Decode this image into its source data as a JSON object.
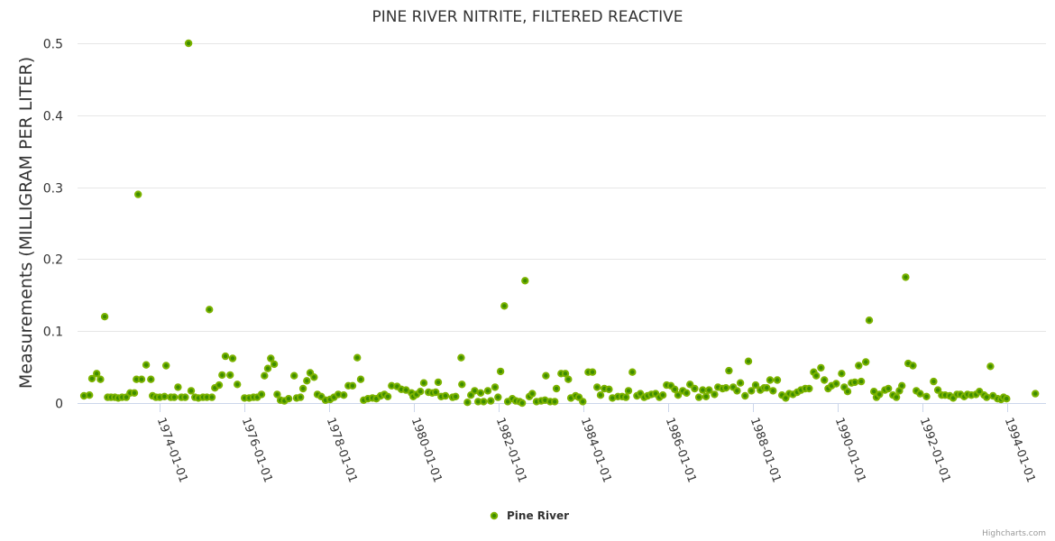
{
  "chart_data": {
    "type": "scatter",
    "title": "PINE RIVER NITRITE, FILTERED REACTIVE",
    "xlabel": "",
    "ylabel": "Measurements (MILLIGRAM PER LITER)",
    "xlim": [
      1972.06,
      1994.91
    ],
    "ylim": [
      0,
      0.5
    ],
    "grid": true,
    "legend_position": "bottom-center",
    "y_ticks": [
      {
        "value": 0,
        "label": "0"
      },
      {
        "value": 0.1,
        "label": "0.1"
      },
      {
        "value": 0.2,
        "label": "0.2"
      },
      {
        "value": 0.3,
        "label": "0.3"
      },
      {
        "value": 0.4,
        "label": "0.4"
      },
      {
        "value": 0.5,
        "label": "0.5"
      }
    ],
    "x_ticks": [
      {
        "value": 1974,
        "label": "1974-01-01"
      },
      {
        "value": 1976,
        "label": "1976-01-01"
      },
      {
        "value": 1978,
        "label": "1978-01-01"
      },
      {
        "value": 1980,
        "label": "1980-01-01"
      },
      {
        "value": 1982,
        "label": "1982-01-01"
      },
      {
        "value": 1984,
        "label": "1984-01-01"
      },
      {
        "value": 1986,
        "label": "1986-01-01"
      },
      {
        "value": 1988,
        "label": "1988-01-01"
      },
      {
        "value": 1990,
        "label": "1990-01-01"
      },
      {
        "value": 1992,
        "label": "1992-01-01"
      },
      {
        "value": 1994,
        "label": "1994-01-01"
      }
    ],
    "series": [
      {
        "name": "Pine River",
        "color": "#7cb300",
        "center_color": "#3d8c00",
        "points": [
          [
            1972.21,
            0.01
          ],
          [
            1972.34,
            0.011
          ],
          [
            1972.4,
            0.034
          ],
          [
            1972.51,
            0.041
          ],
          [
            1972.6,
            0.033
          ],
          [
            1972.7,
            0.12
          ],
          [
            1972.77,
            0.008
          ],
          [
            1972.85,
            0.008
          ],
          [
            1972.94,
            0.008
          ],
          [
            1973.02,
            0.007
          ],
          [
            1973.11,
            0.008
          ],
          [
            1973.21,
            0.008
          ],
          [
            1973.3,
            0.014
          ],
          [
            1973.4,
            0.014
          ],
          [
            1973.45,
            0.033
          ],
          [
            1973.49,
            0.29
          ],
          [
            1973.57,
            0.033
          ],
          [
            1973.68,
            0.053
          ],
          [
            1973.79,
            0.033
          ],
          [
            1973.83,
            0.01
          ],
          [
            1973.91,
            0.008
          ],
          [
            1974.0,
            0.008
          ],
          [
            1974.11,
            0.009
          ],
          [
            1974.15,
            0.052
          ],
          [
            1974.26,
            0.008
          ],
          [
            1974.34,
            0.008
          ],
          [
            1974.43,
            0.022
          ],
          [
            1974.51,
            0.008
          ],
          [
            1974.6,
            0.008
          ],
          [
            1974.68,
            0.5
          ],
          [
            1974.74,
            0.017
          ],
          [
            1974.83,
            0.008
          ],
          [
            1974.91,
            0.007
          ],
          [
            1975.02,
            0.008
          ],
          [
            1975.11,
            0.008
          ],
          [
            1975.17,
            0.13
          ],
          [
            1975.23,
            0.008
          ],
          [
            1975.3,
            0.021
          ],
          [
            1975.4,
            0.025
          ],
          [
            1975.47,
            0.039
          ],
          [
            1975.55,
            0.065
          ],
          [
            1975.66,
            0.039
          ],
          [
            1975.72,
            0.062
          ],
          [
            1975.83,
            0.026
          ],
          [
            1976.0,
            0.007
          ],
          [
            1976.11,
            0.007
          ],
          [
            1976.21,
            0.008
          ],
          [
            1976.3,
            0.008
          ],
          [
            1976.4,
            0.012
          ],
          [
            1976.47,
            0.038
          ],
          [
            1976.55,
            0.048
          ],
          [
            1976.62,
            0.062
          ],
          [
            1976.7,
            0.054
          ],
          [
            1976.77,
            0.012
          ],
          [
            1976.85,
            0.004
          ],
          [
            1976.94,
            0.003
          ],
          [
            1977.04,
            0.006
          ],
          [
            1977.17,
            0.038
          ],
          [
            1977.23,
            0.007
          ],
          [
            1977.32,
            0.008
          ],
          [
            1977.38,
            0.02
          ],
          [
            1977.47,
            0.031
          ],
          [
            1977.55,
            0.042
          ],
          [
            1977.64,
            0.036
          ],
          [
            1977.72,
            0.012
          ],
          [
            1977.81,
            0.009
          ],
          [
            1977.91,
            0.004
          ],
          [
            1978.02,
            0.005
          ],
          [
            1978.11,
            0.008
          ],
          [
            1978.21,
            0.012
          ],
          [
            1978.34,
            0.011
          ],
          [
            1978.45,
            0.024
          ],
          [
            1978.55,
            0.024
          ],
          [
            1978.66,
            0.063
          ],
          [
            1978.74,
            0.033
          ],
          [
            1978.81,
            0.004
          ],
          [
            1978.91,
            0.006
          ],
          [
            1979.02,
            0.007
          ],
          [
            1979.11,
            0.006
          ],
          [
            1979.21,
            0.01
          ],
          [
            1979.3,
            0.012
          ],
          [
            1979.38,
            0.009
          ],
          [
            1979.47,
            0.024
          ],
          [
            1979.6,
            0.023
          ],
          [
            1979.7,
            0.019
          ],
          [
            1979.81,
            0.018
          ],
          [
            1979.94,
            0.014
          ],
          [
            1979.98,
            0.009
          ],
          [
            1980.06,
            0.012
          ],
          [
            1980.15,
            0.016
          ],
          [
            1980.23,
            0.028
          ],
          [
            1980.34,
            0.015
          ],
          [
            1980.43,
            0.014
          ],
          [
            1980.51,
            0.015
          ],
          [
            1980.57,
            0.029
          ],
          [
            1980.64,
            0.009
          ],
          [
            1980.74,
            0.01
          ],
          [
            1980.91,
            0.008
          ],
          [
            1980.98,
            0.009
          ],
          [
            1981.11,
            0.063
          ],
          [
            1981.13,
            0.026
          ],
          [
            1981.26,
            0.001
          ],
          [
            1981.34,
            0.011
          ],
          [
            1981.43,
            0.017
          ],
          [
            1981.51,
            0.002
          ],
          [
            1981.57,
            0.014
          ],
          [
            1981.64,
            0.002
          ],
          [
            1981.74,
            0.017
          ],
          [
            1981.81,
            0.003
          ],
          [
            1981.91,
            0.022
          ],
          [
            1981.98,
            0.008
          ],
          [
            1982.04,
            0.044
          ],
          [
            1982.13,
            0.135
          ],
          [
            1982.21,
            0.002
          ],
          [
            1982.32,
            0.006
          ],
          [
            1982.4,
            0.003
          ],
          [
            1982.49,
            0.002
          ],
          [
            1982.55,
            0.0
          ],
          [
            1982.62,
            0.17
          ],
          [
            1982.72,
            0.009
          ],
          [
            1982.79,
            0.013
          ],
          [
            1982.89,
            0.002
          ],
          [
            1983.0,
            0.003
          ],
          [
            1983.09,
            0.004
          ],
          [
            1983.11,
            0.038
          ],
          [
            1983.21,
            0.002
          ],
          [
            1983.32,
            0.002
          ],
          [
            1983.36,
            0.02
          ],
          [
            1983.47,
            0.041
          ],
          [
            1983.57,
            0.041
          ],
          [
            1983.64,
            0.033
          ],
          [
            1983.7,
            0.007
          ],
          [
            1983.81,
            0.01
          ],
          [
            1983.89,
            0.008
          ],
          [
            1983.98,
            0.002
          ],
          [
            1984.11,
            0.043
          ],
          [
            1984.21,
            0.043
          ],
          [
            1984.32,
            0.022
          ],
          [
            1984.4,
            0.011
          ],
          [
            1984.49,
            0.02
          ],
          [
            1984.6,
            0.019
          ],
          [
            1984.68,
            0.007
          ],
          [
            1984.81,
            0.009
          ],
          [
            1984.91,
            0.009
          ],
          [
            1985.0,
            0.008
          ],
          [
            1985.06,
            0.017
          ],
          [
            1985.15,
            0.043
          ],
          [
            1985.26,
            0.01
          ],
          [
            1985.34,
            0.013
          ],
          [
            1985.43,
            0.008
          ],
          [
            1985.51,
            0.01
          ],
          [
            1985.6,
            0.012
          ],
          [
            1985.7,
            0.013
          ],
          [
            1985.79,
            0.008
          ],
          [
            1985.87,
            0.011
          ],
          [
            1985.96,
            0.025
          ],
          [
            1986.06,
            0.024
          ],
          [
            1986.15,
            0.019
          ],
          [
            1986.23,
            0.011
          ],
          [
            1986.34,
            0.017
          ],
          [
            1986.43,
            0.014
          ],
          [
            1986.51,
            0.026
          ],
          [
            1986.62,
            0.02
          ],
          [
            1986.72,
            0.008
          ],
          [
            1986.81,
            0.018
          ],
          [
            1986.89,
            0.009
          ],
          [
            1986.96,
            0.018
          ],
          [
            1987.09,
            0.012
          ],
          [
            1987.17,
            0.022
          ],
          [
            1987.28,
            0.02
          ],
          [
            1987.36,
            0.021
          ],
          [
            1987.43,
            0.045
          ],
          [
            1987.53,
            0.022
          ],
          [
            1987.62,
            0.017
          ],
          [
            1987.7,
            0.028
          ],
          [
            1987.81,
            0.01
          ],
          [
            1987.89,
            0.058
          ],
          [
            1987.96,
            0.017
          ],
          [
            1988.06,
            0.025
          ],
          [
            1988.17,
            0.018
          ],
          [
            1988.26,
            0.021
          ],
          [
            1988.32,
            0.021
          ],
          [
            1988.4,
            0.032
          ],
          [
            1988.47,
            0.017
          ],
          [
            1988.57,
            0.032
          ],
          [
            1988.68,
            0.011
          ],
          [
            1988.77,
            0.007
          ],
          [
            1988.85,
            0.013
          ],
          [
            1988.94,
            0.012
          ],
          [
            1989.04,
            0.015
          ],
          [
            1989.13,
            0.018
          ],
          [
            1989.23,
            0.02
          ],
          [
            1989.32,
            0.02
          ],
          [
            1989.43,
            0.043
          ],
          [
            1989.49,
            0.038
          ],
          [
            1989.6,
            0.049
          ],
          [
            1989.68,
            0.032
          ],
          [
            1989.77,
            0.02
          ],
          [
            1989.85,
            0.024
          ],
          [
            1989.96,
            0.027
          ],
          [
            1990.09,
            0.041
          ],
          [
            1990.15,
            0.022
          ],
          [
            1990.23,
            0.016
          ],
          [
            1990.32,
            0.028
          ],
          [
            1990.4,
            0.029
          ],
          [
            1990.49,
            0.052
          ],
          [
            1990.55,
            0.03
          ],
          [
            1990.66,
            0.057
          ],
          [
            1990.74,
            0.115
          ],
          [
            1990.85,
            0.016
          ],
          [
            1990.91,
            0.008
          ],
          [
            1990.98,
            0.012
          ],
          [
            1991.11,
            0.018
          ],
          [
            1991.19,
            0.02
          ],
          [
            1991.3,
            0.011
          ],
          [
            1991.38,
            0.008
          ],
          [
            1991.45,
            0.017
          ],
          [
            1991.51,
            0.024
          ],
          [
            1991.6,
            0.175
          ],
          [
            1991.66,
            0.055
          ],
          [
            1991.77,
            0.052
          ],
          [
            1991.85,
            0.017
          ],
          [
            1991.94,
            0.013
          ],
          [
            1992.09,
            0.009
          ],
          [
            1992.26,
            0.03
          ],
          [
            1992.36,
            0.018
          ],
          [
            1992.45,
            0.011
          ],
          [
            1992.53,
            0.011
          ],
          [
            1992.64,
            0.01
          ],
          [
            1992.72,
            0.007
          ],
          [
            1992.81,
            0.012
          ],
          [
            1992.89,
            0.012
          ],
          [
            1992.98,
            0.009
          ],
          [
            1993.06,
            0.012
          ],
          [
            1993.15,
            0.011
          ],
          [
            1993.26,
            0.012
          ],
          [
            1993.34,
            0.016
          ],
          [
            1993.45,
            0.011
          ],
          [
            1993.51,
            0.008
          ],
          [
            1993.6,
            0.051
          ],
          [
            1993.66,
            0.01
          ],
          [
            1993.77,
            0.006
          ],
          [
            1993.85,
            0.005
          ],
          [
            1993.91,
            0.008
          ],
          [
            1993.98,
            0.006
          ],
          [
            1994.66,
            0.013
          ]
        ]
      }
    ],
    "credits": "Highcharts.com"
  }
}
